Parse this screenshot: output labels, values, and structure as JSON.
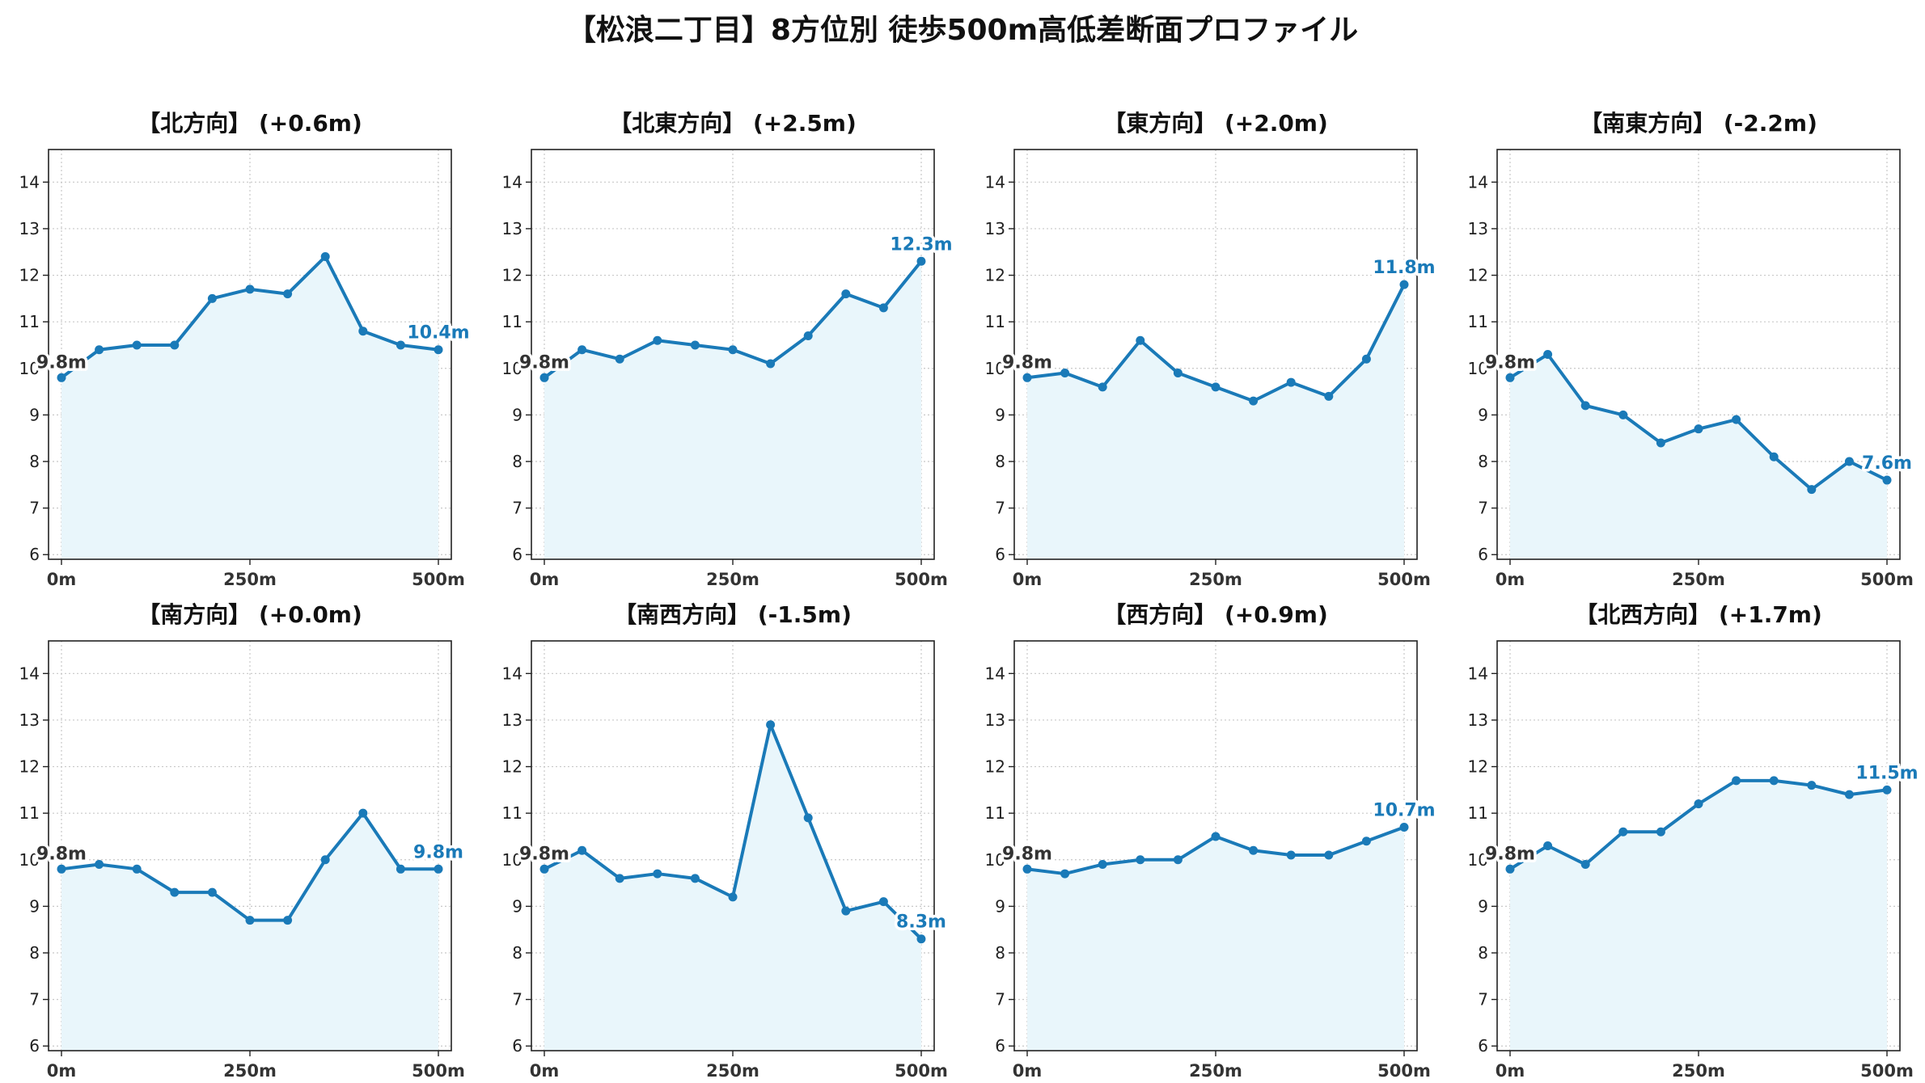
{
  "figure": {
    "title": "【松浪二丁目】8方位別 徒歩500m高低差断面プロファイル"
  },
  "colors": {
    "line": "#1a7ab8",
    "fill": "#e9f6fb",
    "grid": "#c8c8c8",
    "axis": "#222222",
    "end_label": "#1a7ab8",
    "start_label": "#333333"
  },
  "chart_data": [
    {
      "type": "line",
      "title": "【北方向】 (+0.6m)",
      "x_unit": "m",
      "x": [
        0,
        50,
        100,
        150,
        200,
        250,
        300,
        350,
        400,
        450,
        500
      ],
      "values": [
        9.8,
        10.4,
        10.5,
        10.5,
        11.5,
        11.7,
        11.6,
        12.4,
        10.8,
        10.5,
        10.4
      ],
      "xlim": [
        0,
        500
      ],
      "ylim": [
        5.9,
        14.7
      ],
      "yticks": [
        6,
        7,
        8,
        9,
        10,
        11,
        12,
        13,
        14
      ],
      "xticks": [
        "0m",
        "250m",
        "500m"
      ],
      "start_label": "9.8m",
      "end_label": "10.4m",
      "grid": true
    },
    {
      "type": "line",
      "title": "【北東方向】 (+2.5m)",
      "x_unit": "m",
      "x": [
        0,
        50,
        100,
        150,
        200,
        250,
        300,
        350,
        400,
        450,
        500
      ],
      "values": [
        9.8,
        10.4,
        10.2,
        10.6,
        10.5,
        10.4,
        10.1,
        10.7,
        11.6,
        11.3,
        12.3
      ],
      "xlim": [
        0,
        500
      ],
      "ylim": [
        5.9,
        14.7
      ],
      "yticks": [
        6,
        7,
        8,
        9,
        10,
        11,
        12,
        13,
        14
      ],
      "xticks": [
        "0m",
        "250m",
        "500m"
      ],
      "start_label": "9.8m",
      "end_label": "12.3m",
      "grid": true
    },
    {
      "type": "line",
      "title": "【東方向】 (+2.0m)",
      "x_unit": "m",
      "x": [
        0,
        50,
        100,
        150,
        200,
        250,
        300,
        350,
        400,
        450,
        500
      ],
      "values": [
        9.8,
        9.9,
        9.6,
        10.6,
        9.9,
        9.6,
        9.3,
        9.7,
        9.4,
        10.2,
        11.8
      ],
      "xlim": [
        0,
        500
      ],
      "ylim": [
        5.9,
        14.7
      ],
      "yticks": [
        6,
        7,
        8,
        9,
        10,
        11,
        12,
        13,
        14
      ],
      "xticks": [
        "0m",
        "250m",
        "500m"
      ],
      "start_label": "9.8m",
      "end_label": "11.8m",
      "grid": true
    },
    {
      "type": "line",
      "title": "【南東方向】 (-2.2m)",
      "x_unit": "m",
      "x": [
        0,
        50,
        100,
        150,
        200,
        250,
        300,
        350,
        400,
        450,
        500
      ],
      "values": [
        9.8,
        10.3,
        9.2,
        9.0,
        8.4,
        8.7,
        8.9,
        8.1,
        7.4,
        8.0,
        7.6
      ],
      "xlim": [
        0,
        500
      ],
      "ylim": [
        5.9,
        14.7
      ],
      "yticks": [
        6,
        7,
        8,
        9,
        10,
        11,
        12,
        13,
        14
      ],
      "xticks": [
        "0m",
        "250m",
        "500m"
      ],
      "start_label": "9.8m",
      "end_label": "7.6m",
      "grid": true
    },
    {
      "type": "line",
      "title": "【南方向】 (+0.0m)",
      "x_unit": "m",
      "x": [
        0,
        50,
        100,
        150,
        200,
        250,
        300,
        350,
        400,
        450,
        500
      ],
      "values": [
        9.8,
        9.9,
        9.8,
        9.3,
        9.3,
        8.7,
        8.7,
        10.0,
        11.0,
        9.8,
        9.8
      ],
      "xlim": [
        0,
        500
      ],
      "ylim": [
        5.9,
        14.7
      ],
      "yticks": [
        6,
        7,
        8,
        9,
        10,
        11,
        12,
        13,
        14
      ],
      "xticks": [
        "0m",
        "250m",
        "500m"
      ],
      "start_label": "9.8m",
      "end_label": "9.8m",
      "grid": true
    },
    {
      "type": "line",
      "title": "【南西方向】 (-1.5m)",
      "x_unit": "m",
      "x": [
        0,
        50,
        100,
        150,
        200,
        250,
        300,
        350,
        400,
        450,
        500
      ],
      "values": [
        9.8,
        10.2,
        9.6,
        9.7,
        9.6,
        9.2,
        12.9,
        10.9,
        8.9,
        9.1,
        8.3
      ],
      "xlim": [
        0,
        500
      ],
      "ylim": [
        5.9,
        14.7
      ],
      "yticks": [
        6,
        7,
        8,
        9,
        10,
        11,
        12,
        13,
        14
      ],
      "xticks": [
        "0m",
        "250m",
        "500m"
      ],
      "start_label": "9.8m",
      "end_label": "8.3m",
      "grid": true
    },
    {
      "type": "line",
      "title": "【西方向】 (+0.9m)",
      "x_unit": "m",
      "x": [
        0,
        50,
        100,
        150,
        200,
        250,
        300,
        350,
        400,
        450,
        500
      ],
      "values": [
        9.8,
        9.7,
        9.9,
        10.0,
        10.0,
        10.5,
        10.2,
        10.1,
        10.1,
        10.4,
        10.7
      ],
      "xlim": [
        0,
        500
      ],
      "ylim": [
        5.9,
        14.7
      ],
      "yticks": [
        6,
        7,
        8,
        9,
        10,
        11,
        12,
        13,
        14
      ],
      "xticks": [
        "0m",
        "250m",
        "500m"
      ],
      "start_label": "9.8m",
      "end_label": "10.7m",
      "grid": true
    },
    {
      "type": "line",
      "title": "【北西方向】 (+1.7m)",
      "x_unit": "m",
      "x": [
        0,
        50,
        100,
        150,
        200,
        250,
        300,
        350,
        400,
        450,
        500
      ],
      "values": [
        9.8,
        10.3,
        9.9,
        10.6,
        10.6,
        11.2,
        11.7,
        11.7,
        11.6,
        11.4,
        11.5
      ],
      "xlim": [
        0,
        500
      ],
      "ylim": [
        5.9,
        14.7
      ],
      "yticks": [
        6,
        7,
        8,
        9,
        10,
        11,
        12,
        13,
        14
      ],
      "xticks": [
        "0m",
        "250m",
        "500m"
      ],
      "start_label": "9.8m",
      "end_label": "11.5m",
      "grid": true
    }
  ]
}
